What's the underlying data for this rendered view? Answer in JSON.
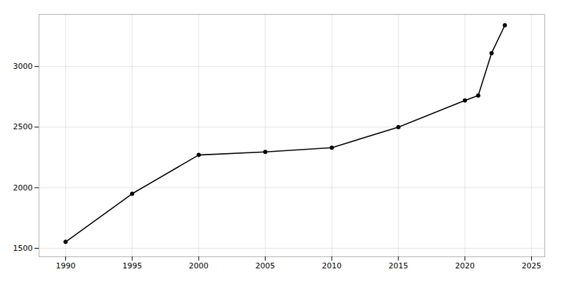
{
  "chart_data": {
    "type": "line",
    "x": [
      1990,
      1995,
      2000,
      2005,
      2010,
      2015,
      2020,
      2021,
      2022,
      2023
    ],
    "values": [
      1553,
      1950,
      2270,
      2295,
      2330,
      2500,
      2720,
      2760,
      3110,
      3340
    ],
    "marker": "circle",
    "xlim": [
      1988,
      2026
    ],
    "ylim": [
      1430,
      3430
    ],
    "xticks": [
      1990,
      1995,
      2000,
      2005,
      2010,
      2015,
      2020,
      2025
    ],
    "yticks": [
      1500,
      2000,
      2500,
      3000
    ],
    "grid": true
  }
}
